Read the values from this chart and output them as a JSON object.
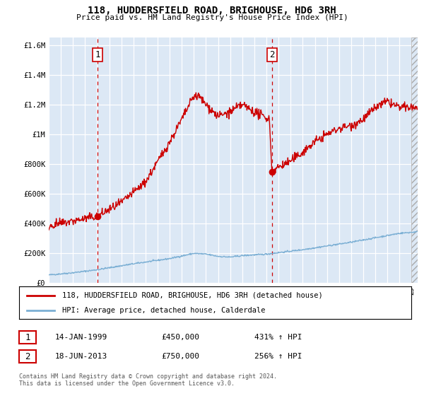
{
  "title": "118, HUDDERSFIELD ROAD, BRIGHOUSE, HD6 3RH",
  "subtitle": "Price paid vs. HM Land Registry's House Price Index (HPI)",
  "ylabel_ticks": [
    "£0",
    "£200K",
    "£400K",
    "£600K",
    "£800K",
    "£1M",
    "£1.2M",
    "£1.4M",
    "£1.6M"
  ],
  "ylim": [
    0,
    1650000
  ],
  "yticks": [
    0,
    200000,
    400000,
    600000,
    800000,
    1000000,
    1200000,
    1400000,
    1600000
  ],
  "sale1_date": 1999.04,
  "sale1_price": 450000,
  "sale1_label": "1",
  "sale2_date": 2013.46,
  "sale2_price": 750000,
  "sale2_label": "2",
  "red_line_color": "#cc0000",
  "blue_line_color": "#7bafd4",
  "dashed_line_color": "#cc0000",
  "grid_color": "#cccccc",
  "chart_bg": "#dce8f5",
  "legend_label_red": "118, HUDDERSFIELD ROAD, BRIGHOUSE, HD6 3RH (detached house)",
  "legend_label_blue": "HPI: Average price, detached house, Calderdale",
  "table_row1": [
    "1",
    "14-JAN-1999",
    "£450,000",
    "431% ↑ HPI"
  ],
  "table_row2": [
    "2",
    "18-JUN-2013",
    "£750,000",
    "256% ↑ HPI"
  ],
  "footnote": "Contains HM Land Registry data © Crown copyright and database right 2024.\nThis data is licensed under the Open Government Licence v3.0.",
  "xmin": 1995.0,
  "xmax": 2025.5
}
